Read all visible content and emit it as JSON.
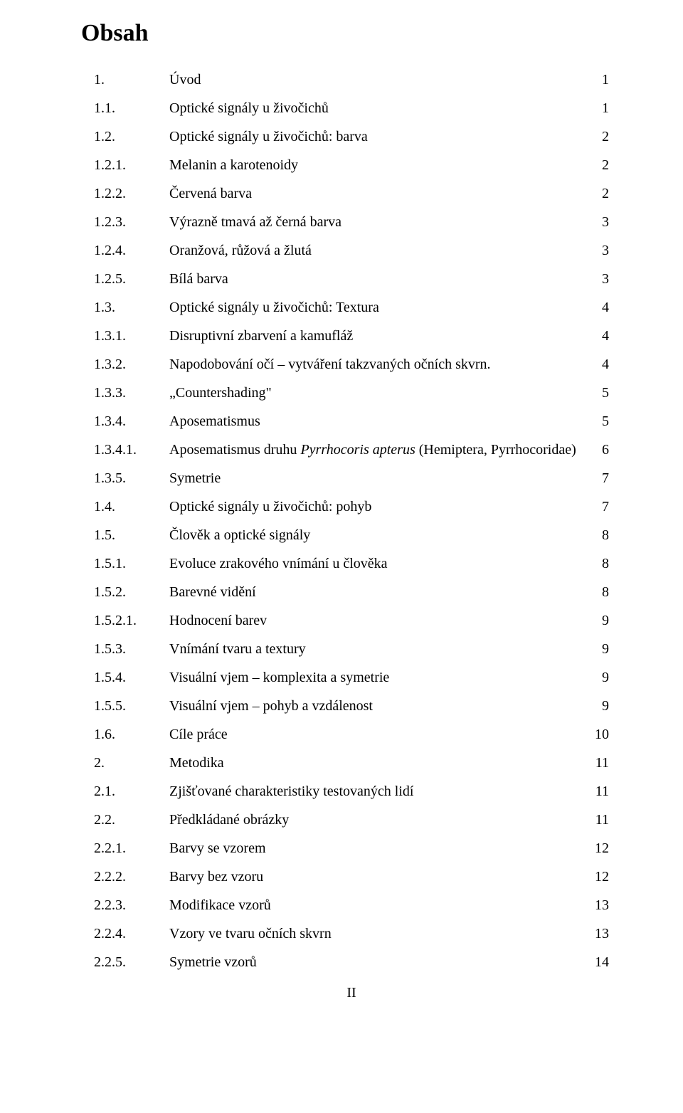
{
  "title": "Obsah",
  "footer": "II",
  "entries": [
    {
      "num": "1.",
      "label_pre": "Úvod",
      "label_it": "",
      "label_post": "",
      "page": "1",
      "level": 0
    },
    {
      "num": "1.1.",
      "label_pre": "Optické signály u živočichů",
      "label_it": "",
      "label_post": "",
      "page": "1",
      "level": 1
    },
    {
      "num": "1.2.",
      "label_pre": "Optické signály u živočichů: barva",
      "label_it": "",
      "label_post": "",
      "page": "2",
      "level": 1
    },
    {
      "num": "1.2.1.",
      "label_pre": "Melanin a karotenoidy",
      "label_it": "",
      "label_post": "",
      "page": "2",
      "level": 2
    },
    {
      "num": "1.2.2.",
      "label_pre": "Červená barva",
      "label_it": "",
      "label_post": "",
      "page": "2",
      "level": 2
    },
    {
      "num": "1.2.3.",
      "label_pre": "Výrazně tmavá až černá barva",
      "label_it": "",
      "label_post": "",
      "page": "3",
      "level": 2
    },
    {
      "num": "1.2.4.",
      "label_pre": "Oranžová, růžová a žlutá",
      "label_it": "",
      "label_post": "",
      "page": "3",
      "level": 2
    },
    {
      "num": "1.2.5.",
      "label_pre": "Bílá barva",
      "label_it": "",
      "label_post": "",
      "page": "3",
      "level": 2
    },
    {
      "num": "1.3.",
      "label_pre": "Optické signály u živočichů: Textura",
      "label_it": "",
      "label_post": "",
      "page": "4",
      "level": 1
    },
    {
      "num": "1.3.1.",
      "label_pre": "Disruptivní zbarvení a kamufláž",
      "label_it": "",
      "label_post": "",
      "page": "4",
      "level": 2
    },
    {
      "num": "1.3.2.",
      "label_pre": "Napodobování očí – vytváření takzvaných očních skvrn.",
      "label_it": "",
      "label_post": "",
      "page": "4",
      "level": 2
    },
    {
      "num": "1.3.3.",
      "label_pre": "„Countershading\"",
      "label_it": "",
      "label_post": "",
      "page": "5",
      "level": 2
    },
    {
      "num": "1.3.4.",
      "label_pre": "Aposematismus",
      "label_it": "",
      "label_post": "",
      "page": "5",
      "level": 2
    },
    {
      "num": "1.3.4.1.",
      "label_pre": "Aposematismus druhu ",
      "label_it": "Pyrrhocoris apterus",
      "label_post": " (Hemiptera, Pyrrhocoridae)",
      "page": "6",
      "level": 3
    },
    {
      "num": "1.3.5.",
      "label_pre": "Symetrie",
      "label_it": "",
      "label_post": "",
      "page": "7",
      "level": 2
    },
    {
      "num": "1.4.",
      "label_pre": "Optické signály u živočichů: pohyb",
      "label_it": "",
      "label_post": "",
      "page": "7",
      "level": 1
    },
    {
      "num": "1.5.",
      "label_pre": "Člověk a optické signály",
      "label_it": "",
      "label_post": "",
      "page": "8",
      "level": 1
    },
    {
      "num": "1.5.1.",
      "label_pre": "Evoluce zrakového vnímání u člověka",
      "label_it": "",
      "label_post": "",
      "page": "8",
      "level": 2
    },
    {
      "num": "1.5.2.",
      "label_pre": "Barevné vidění",
      "label_it": "",
      "label_post": "",
      "page": "8",
      "level": 2
    },
    {
      "num": "1.5.2.1.",
      "label_pre": "Hodnocení barev",
      "label_it": "",
      "label_post": "",
      "page": "9",
      "level": 3
    },
    {
      "num": "1.5.3.",
      "label_pre": "Vnímání tvaru a textury",
      "label_it": "",
      "label_post": "",
      "page": "9",
      "level": 2
    },
    {
      "num": "1.5.4.",
      "label_pre": "Visuální vjem – komplexita a symetrie",
      "label_it": "",
      "label_post": "",
      "page": "9",
      "level": 2
    },
    {
      "num": "1.5.5.",
      "label_pre": "Visuální vjem – pohyb a vzdálenost",
      "label_it": "",
      "label_post": "",
      "page": "9",
      "level": 2
    },
    {
      "num": "1.6.",
      "label_pre": "Cíle práce",
      "label_it": "",
      "label_post": "",
      "page": "10",
      "level": 1
    },
    {
      "num": "2.",
      "label_pre": "Metodika",
      "label_it": "",
      "label_post": "",
      "page": "11",
      "level": 0
    },
    {
      "num": "2.1.",
      "label_pre": "Zjišťované charakteristiky testovaných lidí",
      "label_it": "",
      "label_post": "",
      "page": "11",
      "level": 1
    },
    {
      "num": "2.2.",
      "label_pre": "Předkládané obrázky",
      "label_it": "",
      "label_post": "",
      "page": "11",
      "level": 1
    },
    {
      "num": "2.2.1.",
      "label_pre": "Barvy se vzorem",
      "label_it": "",
      "label_post": "",
      "page": "12",
      "level": 2
    },
    {
      "num": "2.2.2.",
      "label_pre": "Barvy bez vzoru",
      "label_it": "",
      "label_post": "",
      "page": "12",
      "level": 2
    },
    {
      "num": "2.2.3.",
      "label_pre": "Modifikace vzorů",
      "label_it": "",
      "label_post": "",
      "page": "13",
      "level": 2
    },
    {
      "num": "2.2.4.",
      "label_pre": "Vzory ve tvaru očních skvrn",
      "label_it": "",
      "label_post": "",
      "page": "13",
      "level": 2
    },
    {
      "num": "2.2.5.",
      "label_pre": "Symetrie vzorů",
      "label_it": "",
      "label_post": "",
      "page": "14",
      "level": 2
    }
  ]
}
